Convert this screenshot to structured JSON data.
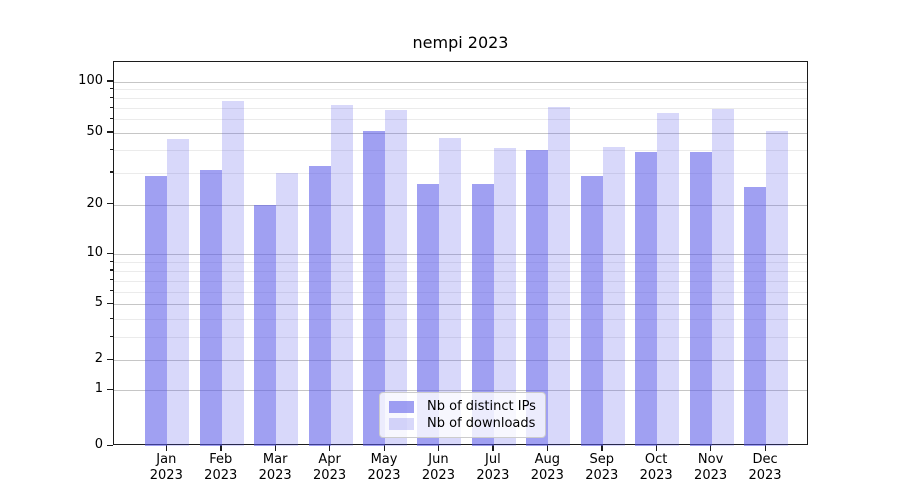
{
  "chart_data": {
    "type": "bar",
    "title": "nempi 2023",
    "categories": [
      "Jan 2023",
      "Feb 2023",
      "Mar 2023",
      "Apr 2023",
      "May 2023",
      "Jun 2023",
      "Jul 2023",
      "Aug 2023",
      "Sep 2023",
      "Oct 2023",
      "Nov 2023",
      "Dec 2023"
    ],
    "series": [
      {
        "name": "Nb of distinct IPs",
        "values": [
          29,
          31,
          20,
          33,
          51,
          26,
          26,
          40,
          29,
          39,
          39,
          25
        ]
      },
      {
        "name": "Nb of downloads",
        "values": [
          46,
          77,
          30,
          73,
          68,
          47,
          41,
          71,
          42,
          65,
          69,
          51
        ]
      }
    ],
    "yscale": "log-like (log10 of 1+value)",
    "yticks": [
      0,
      1,
      2,
      5,
      10,
      20,
      50,
      100
    ],
    "minor_yticks": [
      3,
      4,
      6,
      7,
      8,
      9,
      30,
      40,
      60,
      70,
      80,
      90
    ],
    "ylim": [
      0,
      130
    ],
    "grid": true,
    "legend_position": "lower center inside plot",
    "colors": {
      "distinct_ips_bar": "rgba(88,88,232,0.57)",
      "downloads_bar": "rgba(88,88,232,0.23)",
      "major_grid": "#c6c6c6",
      "minor_grid": "#ebebeb",
      "axis": "#1c1c1c"
    }
  }
}
